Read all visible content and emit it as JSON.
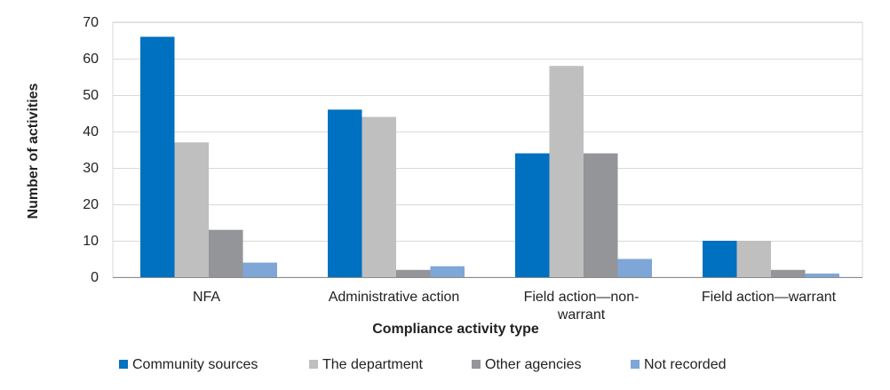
{
  "chart_data": {
    "type": "bar",
    "title": "",
    "xlabel": "Compliance activity type",
    "ylabel": "Number of activities",
    "ylim": [
      0,
      70
    ],
    "yticks": [
      0,
      10,
      20,
      30,
      40,
      50,
      60,
      70
    ],
    "grid": true,
    "legend_position": "bottom",
    "categories": [
      "NFA",
      "Administrative action",
      "Field action—non-warrant",
      "Field action—warrant"
    ],
    "series": [
      {
        "name": "Community sources",
        "color": "#0070c0",
        "values": [
          66,
          46,
          34,
          10
        ]
      },
      {
        "name": "The department",
        "color": "#bfbfbf",
        "values": [
          37,
          44,
          58,
          10
        ]
      },
      {
        "name": "Other agencies",
        "color": "#939598",
        "values": [
          13,
          2,
          34,
          2
        ]
      },
      {
        "name": "Not recorded",
        "color": "#7ea6d6",
        "values": [
          4,
          3,
          5,
          1
        ]
      }
    ]
  }
}
